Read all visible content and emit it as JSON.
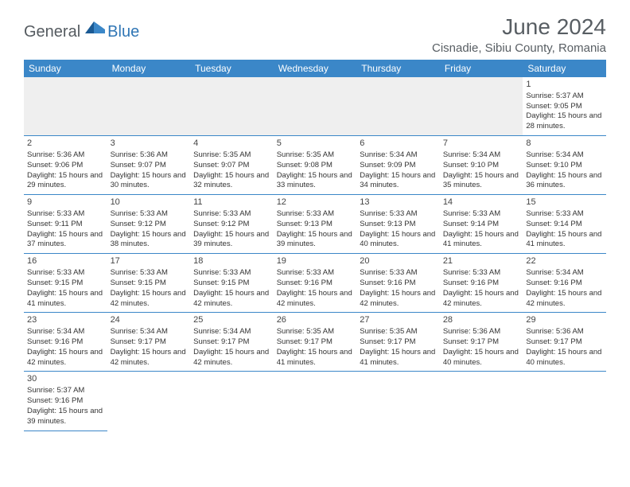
{
  "logo": {
    "general": "General",
    "blue": "Blue"
  },
  "title": "June 2024",
  "location": "Cisnadie, Sibiu County, Romania",
  "colors": {
    "header_bg": "#3b87c8",
    "header_text": "#ffffff",
    "cell_border": "#3b87c8",
    "blank_bg": "#efefef",
    "title_text": "#585e63",
    "logo_gray": "#555b60",
    "logo_blue": "#3076b5"
  },
  "weekdays": [
    "Sunday",
    "Monday",
    "Tuesday",
    "Wednesday",
    "Thursday",
    "Friday",
    "Saturday"
  ],
  "weeks": [
    [
      null,
      null,
      null,
      null,
      null,
      null,
      {
        "n": "1",
        "sr": "5:37 AM",
        "ss": "9:05 PM",
        "dh": "15",
        "dm": "28"
      }
    ],
    [
      {
        "n": "2",
        "sr": "5:36 AM",
        "ss": "9:06 PM",
        "dh": "15",
        "dm": "29"
      },
      {
        "n": "3",
        "sr": "5:36 AM",
        "ss": "9:07 PM",
        "dh": "15",
        "dm": "30"
      },
      {
        "n": "4",
        "sr": "5:35 AM",
        "ss": "9:07 PM",
        "dh": "15",
        "dm": "32"
      },
      {
        "n": "5",
        "sr": "5:35 AM",
        "ss": "9:08 PM",
        "dh": "15",
        "dm": "33"
      },
      {
        "n": "6",
        "sr": "5:34 AM",
        "ss": "9:09 PM",
        "dh": "15",
        "dm": "34"
      },
      {
        "n": "7",
        "sr": "5:34 AM",
        "ss": "9:10 PM",
        "dh": "15",
        "dm": "35"
      },
      {
        "n": "8",
        "sr": "5:34 AM",
        "ss": "9:10 PM",
        "dh": "15",
        "dm": "36"
      }
    ],
    [
      {
        "n": "9",
        "sr": "5:33 AM",
        "ss": "9:11 PM",
        "dh": "15",
        "dm": "37"
      },
      {
        "n": "10",
        "sr": "5:33 AM",
        "ss": "9:12 PM",
        "dh": "15",
        "dm": "38"
      },
      {
        "n": "11",
        "sr": "5:33 AM",
        "ss": "9:12 PM",
        "dh": "15",
        "dm": "39"
      },
      {
        "n": "12",
        "sr": "5:33 AM",
        "ss": "9:13 PM",
        "dh": "15",
        "dm": "39"
      },
      {
        "n": "13",
        "sr": "5:33 AM",
        "ss": "9:13 PM",
        "dh": "15",
        "dm": "40"
      },
      {
        "n": "14",
        "sr": "5:33 AM",
        "ss": "9:14 PM",
        "dh": "15",
        "dm": "41"
      },
      {
        "n": "15",
        "sr": "5:33 AM",
        "ss": "9:14 PM",
        "dh": "15",
        "dm": "41"
      }
    ],
    [
      {
        "n": "16",
        "sr": "5:33 AM",
        "ss": "9:15 PM",
        "dh": "15",
        "dm": "41"
      },
      {
        "n": "17",
        "sr": "5:33 AM",
        "ss": "9:15 PM",
        "dh": "15",
        "dm": "42"
      },
      {
        "n": "18",
        "sr": "5:33 AM",
        "ss": "9:15 PM",
        "dh": "15",
        "dm": "42"
      },
      {
        "n": "19",
        "sr": "5:33 AM",
        "ss": "9:16 PM",
        "dh": "15",
        "dm": "42"
      },
      {
        "n": "20",
        "sr": "5:33 AM",
        "ss": "9:16 PM",
        "dh": "15",
        "dm": "42"
      },
      {
        "n": "21",
        "sr": "5:33 AM",
        "ss": "9:16 PM",
        "dh": "15",
        "dm": "42"
      },
      {
        "n": "22",
        "sr": "5:34 AM",
        "ss": "9:16 PM",
        "dh": "15",
        "dm": "42"
      }
    ],
    [
      {
        "n": "23",
        "sr": "5:34 AM",
        "ss": "9:16 PM",
        "dh": "15",
        "dm": "42"
      },
      {
        "n": "24",
        "sr": "5:34 AM",
        "ss": "9:17 PM",
        "dh": "15",
        "dm": "42"
      },
      {
        "n": "25",
        "sr": "5:34 AM",
        "ss": "9:17 PM",
        "dh": "15",
        "dm": "42"
      },
      {
        "n": "26",
        "sr": "5:35 AM",
        "ss": "9:17 PM",
        "dh": "15",
        "dm": "41"
      },
      {
        "n": "27",
        "sr": "5:35 AM",
        "ss": "9:17 PM",
        "dh": "15",
        "dm": "41"
      },
      {
        "n": "28",
        "sr": "5:36 AM",
        "ss": "9:17 PM",
        "dh": "15",
        "dm": "40"
      },
      {
        "n": "29",
        "sr": "5:36 AM",
        "ss": "9:17 PM",
        "dh": "15",
        "dm": "40"
      }
    ],
    [
      {
        "n": "30",
        "sr": "5:37 AM",
        "ss": "9:16 PM",
        "dh": "15",
        "dm": "39"
      },
      null,
      null,
      null,
      null,
      null,
      null
    ]
  ],
  "labels": {
    "sunrise": "Sunrise:",
    "sunset": "Sunset:",
    "daylight_prefix": "Daylight:",
    "hours_word": "hours",
    "and_word": "and",
    "minutes_word": "minutes."
  }
}
